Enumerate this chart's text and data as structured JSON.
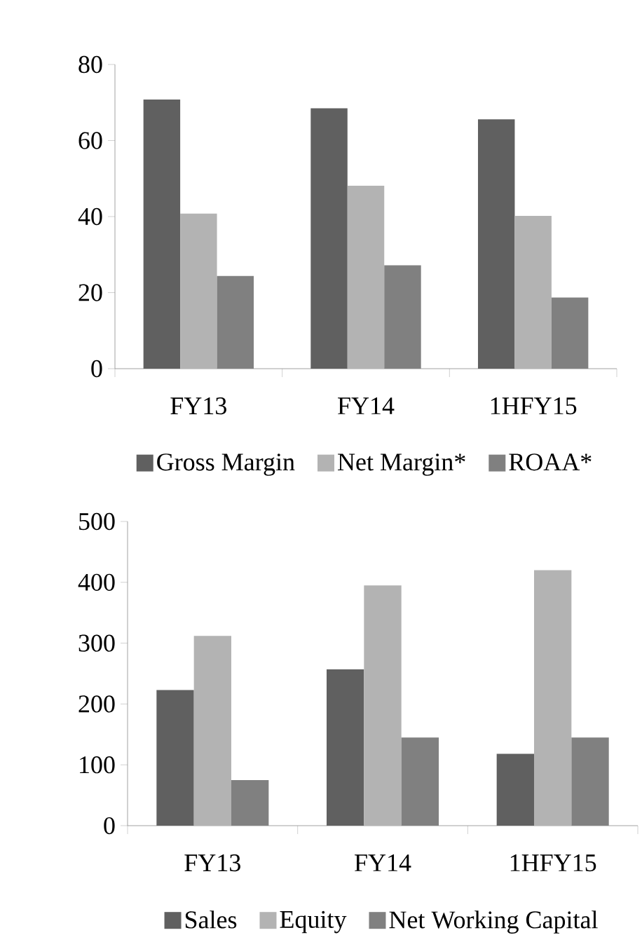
{
  "chart_data": [
    {
      "type": "bar",
      "categories": [
        "FY13",
        "FY14",
        "1HFY15"
      ],
      "ylim": [
        0,
        80
      ],
      "yticks": [
        0,
        20,
        40,
        60,
        80
      ],
      "legend": "bottom",
      "series": [
        {
          "name": "Gross Margin",
          "color": "#606060",
          "values": [
            70.8,
            68.5,
            65.6
          ]
        },
        {
          "name": "Net Margin*",
          "color": "#b3b3b3",
          "values": [
            40.8,
            48.1,
            40.2
          ]
        },
        {
          "name": "ROAA*",
          "color": "#808080",
          "values": [
            24.4,
            27.2,
            18.7
          ]
        }
      ]
    },
    {
      "type": "bar",
      "categories": [
        "FY13",
        "FY14",
        "1HFY15"
      ],
      "ylim": [
        0,
        500
      ],
      "yticks": [
        0,
        100,
        200,
        300,
        400,
        500
      ],
      "legend": "bottom",
      "series": [
        {
          "name": "Sales",
          "color": "#606060",
          "values": [
            223,
            257,
            118
          ]
        },
        {
          "name": "Equity",
          "color": "#b3b3b3",
          "values": [
            312,
            395,
            420
          ]
        },
        {
          "name": "Net Working Capital",
          "color": "#808080",
          "values": [
            75,
            145,
            145
          ]
        }
      ]
    }
  ]
}
